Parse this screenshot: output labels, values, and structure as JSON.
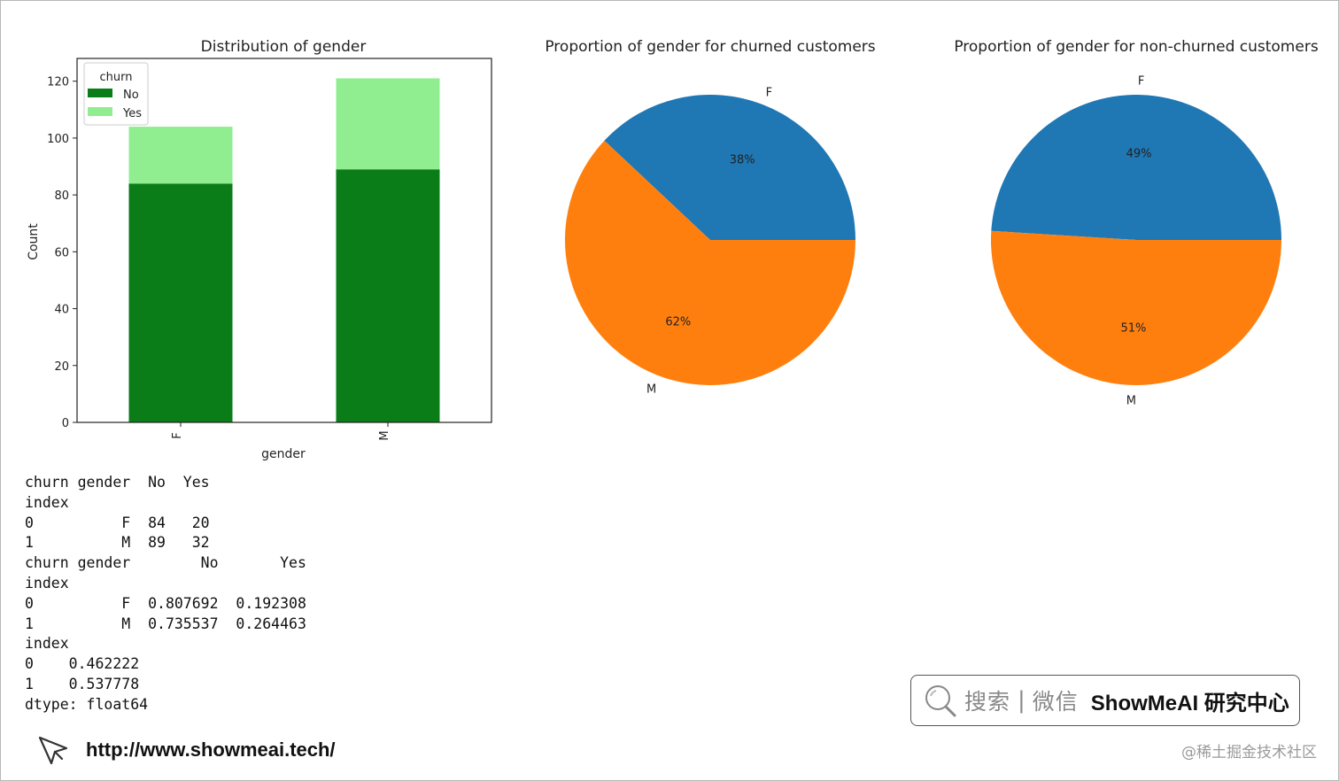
{
  "chart_data": [
    {
      "type": "bar",
      "stacked": true,
      "title": "Distribution of gender",
      "xlabel": "gender",
      "ylabel": "Count",
      "categories": [
        "F",
        "M"
      ],
      "series": [
        {
          "name": "No",
          "color": "#0a7d18",
          "values": [
            84,
            89
          ]
        },
        {
          "name": "Yes",
          "color": "#90ee90",
          "values": [
            20,
            32
          ]
        }
      ],
      "ylim": [
        0,
        128
      ],
      "yticks": [
        0,
        20,
        40,
        60,
        80,
        100,
        120
      ],
      "legend": {
        "title": "churn",
        "position": "top-left"
      },
      "grid": false
    },
    {
      "type": "pie",
      "title": "Proportion of gender for churned customers",
      "slices": [
        {
          "label": "F",
          "value": 38,
          "pct_label": "38%",
          "color": "#1f77b4"
        },
        {
          "label": "M",
          "value": 62,
          "pct_label": "62%",
          "color": "#ff7f0e"
        }
      ]
    },
    {
      "type": "pie",
      "title": "Proportion of gender for non-churned customers",
      "slices": [
        {
          "label": "F",
          "value": 49,
          "pct_label": "49%",
          "color": "#1f77b4"
        },
        {
          "label": "M",
          "value": 51,
          "pct_label": "51%",
          "color": "#ff7f0e"
        }
      ]
    }
  ],
  "console_lines": [
    "churn gender  No  Yes",
    "index",
    "0          F  84   20",
    "1          M  89   32",
    "churn gender        No       Yes",
    "index",
    "0          F  0.807692  0.192308",
    "1          M  0.735537  0.264463",
    "index",
    "0    0.462222",
    "1    0.537778",
    "dtype: float64"
  ],
  "footer": {
    "url": "http://www.showmeai.tech/",
    "icon": "cursor-arrow-icon"
  },
  "search_banner": {
    "icon": "search-icon",
    "search_text": "搜索",
    "separator": "|",
    "wechat_text": "微信",
    "brand": "ShowMeAI 研究中心"
  },
  "watermark": "@稀土掘金技术社区"
}
